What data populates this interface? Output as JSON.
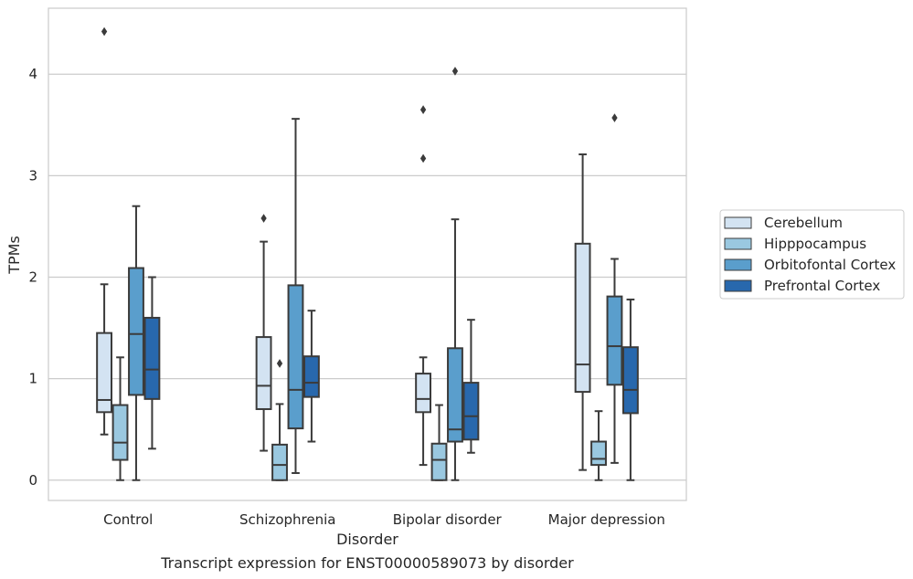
{
  "chart_data": {
    "type": "boxplot",
    "title": "",
    "caption": "Transcript expression for ENST00000589073 by disorder",
    "xlabel": "Disorder",
    "ylabel": "TPMs",
    "ylim": [
      -0.2,
      4.65
    ],
    "yticks": [
      0,
      1,
      2,
      3,
      4
    ],
    "grid": "horizontal",
    "legend_position": "right",
    "categories": [
      "Control",
      "Schizophrenia",
      "Bipolar disorder",
      "Major depression"
    ],
    "series": [
      {
        "name": "Cerebellum",
        "color": "#d3e3f2",
        "boxes": [
          {
            "whislo": 0.45,
            "q1": 0.67,
            "med": 0.79,
            "q3": 1.45,
            "whishi": 1.93,
            "fliers": [
              4.42
            ]
          },
          {
            "whislo": 0.29,
            "q1": 0.7,
            "med": 0.93,
            "q3": 1.41,
            "whishi": 2.35,
            "fliers": [
              2.58
            ]
          },
          {
            "whislo": 0.15,
            "q1": 0.67,
            "med": 0.8,
            "q3": 1.05,
            "whishi": 1.21,
            "fliers": [
              3.17,
              3.65
            ]
          },
          {
            "whislo": 0.1,
            "q1": 0.87,
            "med": 1.14,
            "q3": 2.33,
            "whishi": 3.21,
            "fliers": []
          }
        ]
      },
      {
        "name": "Hipppocampus",
        "color": "#9ac8e0",
        "boxes": [
          {
            "whislo": 0.0,
            "q1": 0.2,
            "med": 0.37,
            "q3": 0.74,
            "whishi": 1.21,
            "fliers": []
          },
          {
            "whislo": 0.0,
            "q1": 0.0,
            "med": 0.15,
            "q3": 0.35,
            "whishi": 0.75,
            "fliers": [
              1.15
            ]
          },
          {
            "whislo": 0.0,
            "q1": 0.0,
            "med": 0.2,
            "q3": 0.36,
            "whishi": 0.74,
            "fliers": []
          },
          {
            "whislo": 0.0,
            "q1": 0.15,
            "med": 0.21,
            "q3": 0.38,
            "whishi": 0.68,
            "fliers": []
          }
        ]
      },
      {
        "name": "Orbitofontal Cortex",
        "color": "#5a9ecc",
        "boxes": [
          {
            "whislo": 0.0,
            "q1": 0.84,
            "med": 1.44,
            "q3": 2.09,
            "whishi": 2.7,
            "fliers": []
          },
          {
            "whislo": 0.07,
            "q1": 0.51,
            "med": 0.89,
            "q3": 1.92,
            "whishi": 3.56,
            "fliers": []
          },
          {
            "whislo": 0.0,
            "q1": 0.38,
            "med": 0.5,
            "q3": 1.3,
            "whishi": 2.57,
            "fliers": [
              4.03
            ]
          },
          {
            "whislo": 0.17,
            "q1": 0.94,
            "med": 1.32,
            "q3": 1.81,
            "whishi": 2.18,
            "fliers": [
              3.57
            ]
          }
        ]
      },
      {
        "name": "Prefrontal Cortex",
        "color": "#2868ad",
        "boxes": [
          {
            "whislo": 0.31,
            "q1": 0.8,
            "med": 1.09,
            "q3": 1.6,
            "whishi": 2.0,
            "fliers": []
          },
          {
            "whislo": 0.38,
            "q1": 0.82,
            "med": 0.96,
            "q3": 1.22,
            "whishi": 1.67,
            "fliers": []
          },
          {
            "whislo": 0.27,
            "q1": 0.4,
            "med": 0.63,
            "q3": 0.96,
            "whishi": 1.58,
            "fliers": []
          },
          {
            "whislo": 0.0,
            "q1": 0.66,
            "med": 0.89,
            "q3": 1.31,
            "whishi": 1.78,
            "fliers": []
          }
        ]
      }
    ]
  }
}
